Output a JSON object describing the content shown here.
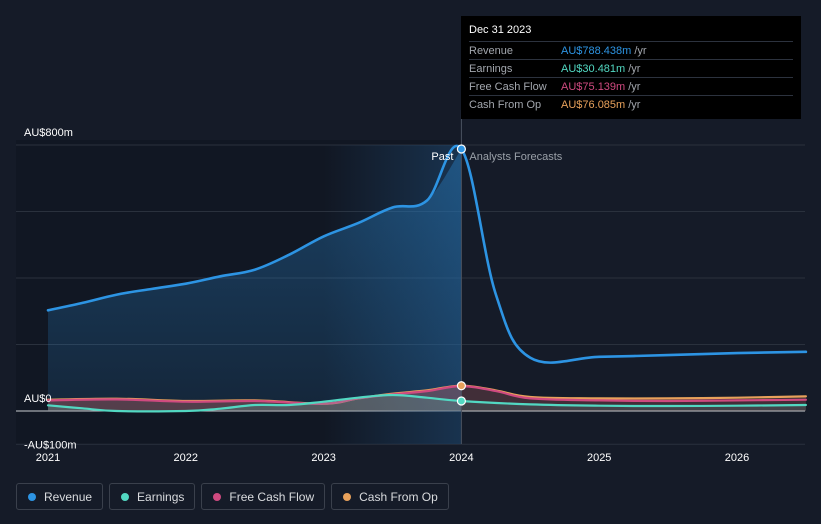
{
  "chart_data": {
    "type": "line",
    "title": "",
    "y_unit": "AU$m",
    "ylim": [
      -100,
      800
    ],
    "y_tick_labels": [
      {
        "label": "AU$800m",
        "value": 800
      },
      {
        "label": "AU$0",
        "value": 0
      },
      {
        "label": "-AU$100m",
        "value": -100
      }
    ],
    "x_tick_labels": [
      {
        "label": "2021",
        "value": 2021.0
      },
      {
        "label": "2022",
        "value": 2022.0
      },
      {
        "label": "2023",
        "value": 2023.0
      },
      {
        "label": "2024",
        "value": 2024.0
      },
      {
        "label": "2025",
        "value": 2025.0
      },
      {
        "label": "2026",
        "value": 2026.0
      }
    ],
    "xlim": [
      2020.8,
      2026.5
    ],
    "divider_x": 2024.0,
    "shade_start_x": 2023.0,
    "past_label": "Past",
    "forecast_label": "Analysts Forecasts",
    "series": [
      {
        "name": "Revenue",
        "color": "#2d94e3",
        "filled": true,
        "points": [
          [
            2021.0,
            303
          ],
          [
            2021.25,
            325
          ],
          [
            2021.5,
            350
          ],
          [
            2021.75,
            367
          ],
          [
            2022.0,
            383
          ],
          [
            2022.25,
            405
          ],
          [
            2022.5,
            425
          ],
          [
            2022.75,
            470
          ],
          [
            2023.0,
            525
          ],
          [
            2023.25,
            565
          ],
          [
            2023.5,
            612
          ],
          [
            2023.75,
            633
          ],
          [
            2024.0,
            788
          ],
          [
            2024.25,
            350
          ],
          [
            2024.5,
            160
          ],
          [
            2025.0,
            163
          ],
          [
            2025.5,
            168
          ],
          [
            2026.0,
            174
          ],
          [
            2026.5,
            178
          ]
        ]
      },
      {
        "name": "Earnings",
        "color": "#52d8c2",
        "filled": false,
        "points": [
          [
            2021.0,
            17
          ],
          [
            2021.25,
            8
          ],
          [
            2021.5,
            0
          ],
          [
            2022.0,
            0
          ],
          [
            2022.25,
            7
          ],
          [
            2022.5,
            18
          ],
          [
            2022.75,
            18
          ],
          [
            2023.0,
            28
          ],
          [
            2023.25,
            40
          ],
          [
            2023.5,
            48
          ],
          [
            2023.75,
            40
          ],
          [
            2024.0,
            30
          ],
          [
            2024.5,
            20
          ],
          [
            2025.0,
            16
          ],
          [
            2025.5,
            15
          ],
          [
            2026.0,
            16
          ],
          [
            2026.5,
            18
          ]
        ]
      },
      {
        "name": "Free Cash Flow",
        "color": "#cf4a80",
        "filled": false,
        "points": [
          [
            2021.0,
            32
          ],
          [
            2021.5,
            35
          ],
          [
            2022.0,
            28
          ],
          [
            2022.5,
            30
          ],
          [
            2023.0,
            22
          ],
          [
            2023.25,
            38
          ],
          [
            2023.5,
            50
          ],
          [
            2023.75,
            60
          ],
          [
            2024.0,
            75
          ],
          [
            2024.25,
            60
          ],
          [
            2024.5,
            38
          ],
          [
            2025.0,
            32
          ],
          [
            2025.5,
            30
          ],
          [
            2026.0,
            32
          ],
          [
            2026.5,
            34
          ]
        ]
      },
      {
        "name": "Cash From Op",
        "color": "#e8a15b",
        "filled": false,
        "points": [
          [
            2021.0,
            34
          ],
          [
            2021.5,
            37
          ],
          [
            2022.0,
            30
          ],
          [
            2022.5,
            32
          ],
          [
            2023.0,
            22
          ],
          [
            2023.25,
            38
          ],
          [
            2023.5,
            52
          ],
          [
            2023.75,
            62
          ],
          [
            2024.0,
            76
          ],
          [
            2024.25,
            62
          ],
          [
            2024.5,
            42
          ],
          [
            2025.0,
            38
          ],
          [
            2025.5,
            38
          ],
          [
            2026.0,
            40
          ],
          [
            2026.5,
            44
          ]
        ]
      }
    ],
    "highlight_x": 2024.0
  },
  "tooltip": {
    "date": "Dec 31 2023",
    "rows": [
      {
        "label": "Revenue",
        "value": "AU$788.438m",
        "unit": "/yr",
        "color": "#2d94e3"
      },
      {
        "label": "Earnings",
        "value": "AU$30.481m",
        "unit": "/yr",
        "color": "#52d8c2"
      },
      {
        "label": "Free Cash Flow",
        "value": "AU$75.139m",
        "unit": "/yr",
        "color": "#cf4a80"
      },
      {
        "label": "Cash From Op",
        "value": "AU$76.085m",
        "unit": "/yr",
        "color": "#e8a15b"
      }
    ]
  },
  "legend": [
    {
      "label": "Revenue",
      "color": "#2d94e3"
    },
    {
      "label": "Earnings",
      "color": "#52d8c2"
    },
    {
      "label": "Free Cash Flow",
      "color": "#cf4a80"
    },
    {
      "label": "Cash From Op",
      "color": "#e8a15b"
    }
  ]
}
